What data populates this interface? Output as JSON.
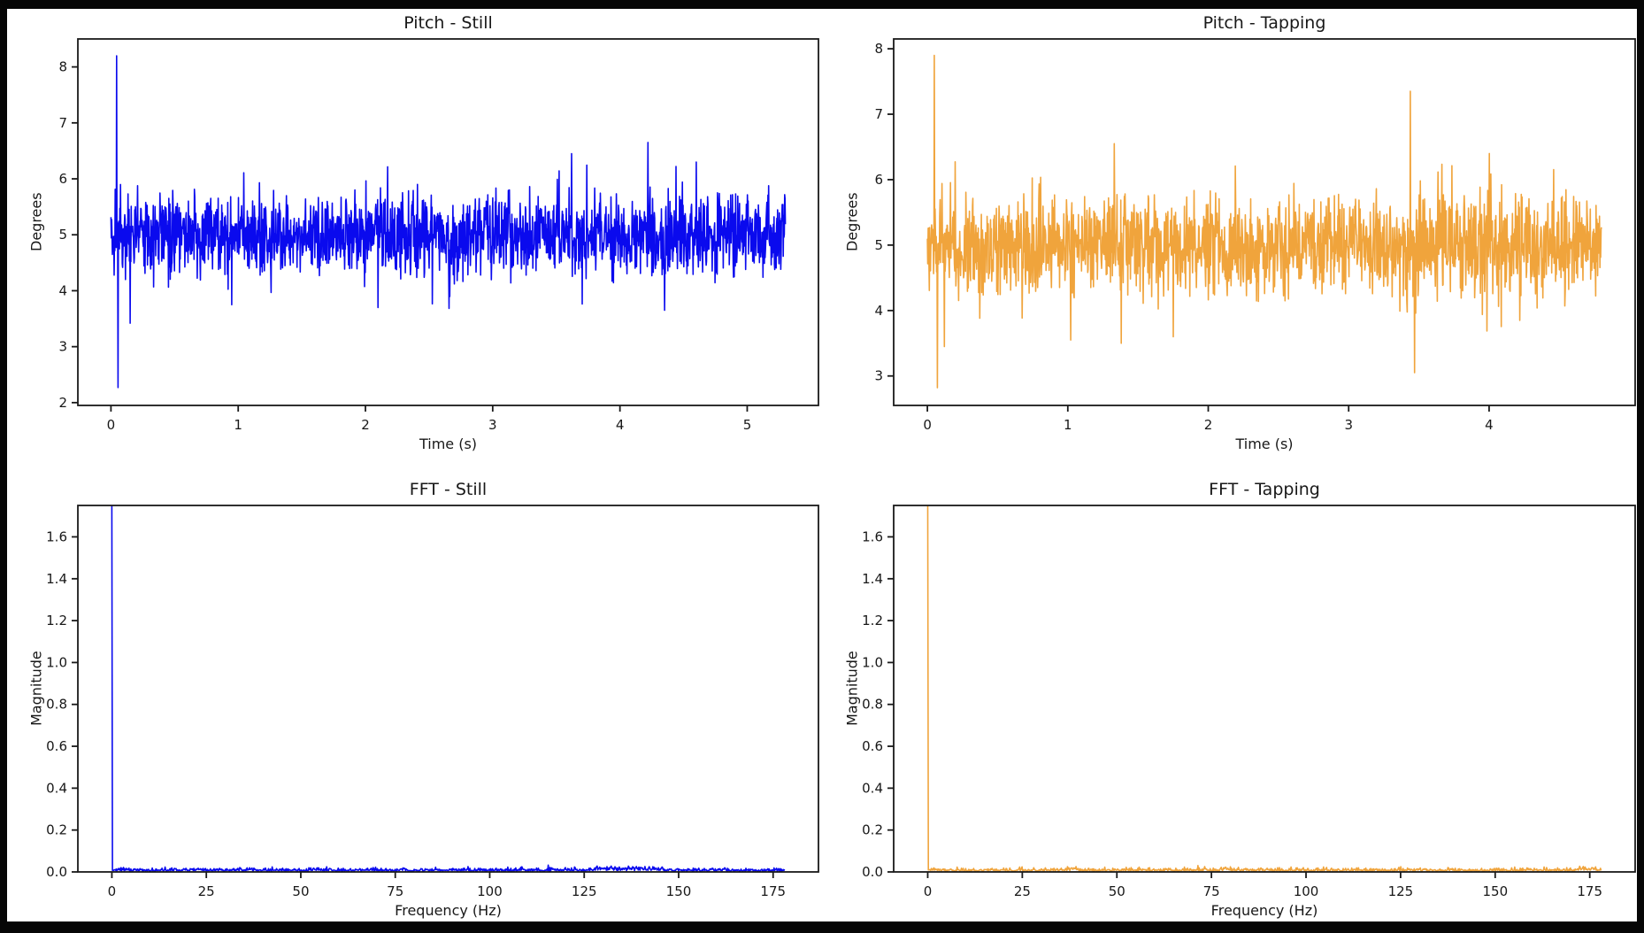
{
  "figure": {
    "outer_background": "#000000",
    "canvas_background": "#ffffff",
    "text_color": "#181818",
    "axis_color": "#1a1a1a"
  },
  "chart_data": [
    {
      "id": "pitch-still",
      "type": "line",
      "title": "Pitch - Still",
      "xlabel": "Time (s)",
      "ylabel": "Degrees",
      "color": "#0a0aee",
      "legend": "none",
      "grid": false,
      "xlim": [
        -0.26,
        5.56
      ],
      "ylim": [
        1.95,
        8.5
      ],
      "x_ticks": [
        0,
        1,
        2,
        3,
        4,
        5
      ],
      "y_ticks": [
        2,
        3,
        4,
        5,
        6,
        7,
        8
      ],
      "y_tick_decimals": 0,
      "series": {
        "kind": "noisy-signal",
        "seed": 41,
        "points": 1900,
        "t_end": 5.3,
        "baseline": 5.0,
        "noise_std": 0.34,
        "tail_prob": 0.05,
        "tail_min": 0.15,
        "tail_span": 0.6,
        "tail_neg_bias": 0.5,
        "events": [
          {
            "t": 0.045,
            "value": 8.2
          },
          {
            "t": 0.055,
            "value": 2.27
          },
          {
            "t": 0.95,
            "value": 3.75
          },
          {
            "t": 2.1,
            "value": 3.7
          },
          {
            "t": 3.62,
            "value": 6.45
          },
          {
            "t": 4.22,
            "value": 6.65
          },
          {
            "t": 4.35,
            "value": 3.65
          },
          {
            "t": 4.6,
            "value": 6.3
          }
        ]
      }
    },
    {
      "id": "pitch-tapping",
      "type": "line",
      "title": "Pitch - Tapping",
      "xlabel": "Time (s)",
      "ylabel": "Degrees",
      "color": "#f0a43c",
      "legend": "none",
      "grid": false,
      "xlim": [
        -0.24,
        5.04
      ],
      "ylim": [
        2.55,
        8.15
      ],
      "x_ticks": [
        0,
        1,
        2,
        3,
        4
      ],
      "y_ticks": [
        3,
        4,
        5,
        6,
        7,
        8
      ],
      "y_tick_decimals": 0,
      "series": {
        "kind": "noisy-signal",
        "seed": 97,
        "points": 1750,
        "t_end": 4.8,
        "baseline": 5.0,
        "noise_std": 0.36,
        "tail_prob": 0.06,
        "tail_min": 0.2,
        "tail_span": 0.65,
        "tail_neg_bias": 0.6,
        "events": [
          {
            "t": 0.05,
            "value": 7.9
          },
          {
            "t": 0.07,
            "value": 2.82
          },
          {
            "t": 0.12,
            "value": 3.45
          },
          {
            "t": 1.02,
            "value": 3.55
          },
          {
            "t": 1.33,
            "value": 6.55
          },
          {
            "t": 1.38,
            "value": 3.5
          },
          {
            "t": 1.75,
            "value": 3.6
          },
          {
            "t": 3.44,
            "value": 7.35
          },
          {
            "t": 3.47,
            "value": 3.05
          },
          {
            "t": 4.0,
            "value": 6.4
          },
          {
            "t": 4.72,
            "value": 5.55
          }
        ]
      }
    },
    {
      "id": "fft-still",
      "type": "line",
      "title": "FFT - Still",
      "xlabel": "Frequency (Hz)",
      "ylabel": "Magnitude",
      "color": "#0a0aee",
      "legend": "none",
      "grid": false,
      "xlim": [
        -9,
        187
      ],
      "ylim": [
        0,
        1.75
      ],
      "x_ticks": [
        0,
        25,
        50,
        75,
        100,
        125,
        150,
        175
      ],
      "y_ticks": [
        0,
        0.2,
        0.4,
        0.6,
        0.8,
        1.0,
        1.2,
        1.4,
        1.6
      ],
      "y_tick_decimals": 1,
      "series": {
        "kind": "fft-spectrum",
        "seed": 7,
        "points": 1100,
        "f_end": 178,
        "dc_magnitude": 5.0,
        "floor_base": 0.004,
        "floor_noise": 0.007,
        "rare_prob": 0.02,
        "rare_extra": 0.016,
        "bumps": [
          {
            "range": [
              128,
              146
            ],
            "extra": 0.012
          }
        ]
      }
    },
    {
      "id": "fft-tapping",
      "type": "line",
      "title": "FFT - Tapping",
      "xlabel": "Frequency (Hz)",
      "ylabel": "Magnitude",
      "color": "#f0a43c",
      "legend": "none",
      "grid": false,
      "xlim": [
        -9,
        187
      ],
      "ylim": [
        0,
        1.75
      ],
      "x_ticks": [
        0,
        25,
        50,
        75,
        100,
        125,
        150,
        175
      ],
      "y_ticks": [
        0,
        0.2,
        0.4,
        0.6,
        0.8,
        1.0,
        1.2,
        1.4,
        1.6
      ],
      "y_tick_decimals": 1,
      "series": {
        "kind": "fft-spectrum",
        "seed": 21,
        "points": 1100,
        "f_end": 178,
        "dc_magnitude": 5.0,
        "floor_base": 0.004,
        "floor_noise": 0.007,
        "rare_prob": 0.02,
        "rare_extra": 0.016,
        "bumps": [
          {
            "range": [
              36,
              40
            ],
            "extra": 0.012
          },
          {
            "range": [
              172,
              177
            ],
            "extra": 0.01
          }
        ]
      }
    }
  ]
}
